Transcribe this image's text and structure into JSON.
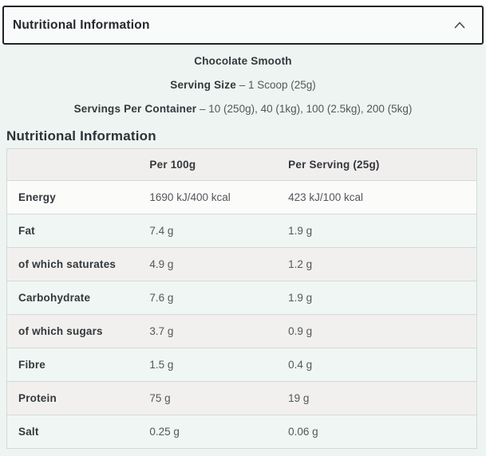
{
  "accordion": {
    "title": "Nutritional Information",
    "chevron_icon": "chevron-up"
  },
  "product": {
    "flavour": "Chocolate Smooth",
    "serving_size_label": "Serving Size",
    "serving_size_value": "– 1 Scoop (25g)",
    "servings_per_container_label": "Servings Per Container",
    "servings_per_container_value": "– 10 (250g), 40 (1kg), 100 (2.5kg), 200 (5kg)"
  },
  "section": {
    "heading": "Nutritional Information"
  },
  "table": {
    "columns": [
      "",
      "Per 100g",
      "Per Serving (25g)"
    ],
    "rows": [
      {
        "label": "Energy",
        "per_100g": "1690 kJ/400 kcal",
        "per_serving": "423 kJ/100 kcal"
      },
      {
        "label": "Fat",
        "per_100g": "7.4 g",
        "per_serving": "1.9 g"
      },
      {
        "label": "of which saturates",
        "per_100g": "4.9 g",
        "per_serving": "1.2 g"
      },
      {
        "label": "Carbohydrate",
        "per_100g": "7.6 g",
        "per_serving": "1.9 g"
      },
      {
        "label": "of which sugars",
        "per_100g": "3.7 g",
        "per_serving": "0.9 g"
      },
      {
        "label": "Fibre",
        "per_100g": "1.5 g",
        "per_serving": "0.4 g"
      },
      {
        "label": "Protein",
        "per_100g": "75 g",
        "per_serving": "19 g"
      },
      {
        "label": "Salt",
        "per_100g": "0.25 g",
        "per_serving": "0.06 g"
      }
    ]
  },
  "colors": {
    "accent_border": "#202428",
    "content_bg": "#edf4f1",
    "header_row_bg": "#f1efee",
    "row_mint": "#eff6f3",
    "row_gray": "#f1f0ee",
    "row_white": "#fbfbfa",
    "table_border": "#d5d9d8",
    "text_dark": "#34383c",
    "text_value": "#53575b"
  }
}
